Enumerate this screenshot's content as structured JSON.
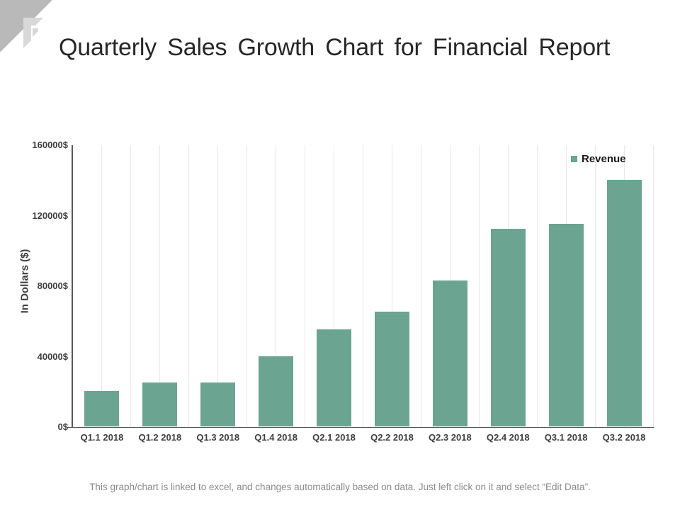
{
  "title": "Quarterly Sales Growth Chart for Financial Report",
  "footer": "This graph/chart is linked to excel, and changes automatically based on data. Just left click on it and select “Edit Data”.",
  "colors": {
    "bar": "#6CA492",
    "axis": "#595959",
    "gridline": "#e8e8e8",
    "title_text": "#272727",
    "label_text": "#3f3f3f",
    "footer_text": "#8a8a8a",
    "logo_dark": "#b9b9b9",
    "logo_light": "#d8d8d8"
  },
  "chart_data": {
    "type": "bar",
    "title": "",
    "categories": [
      "Q1.1 2018",
      "Q1.2 2018",
      "Q1.3 2018",
      "Q1.4 2018",
      "Q2.1 2018",
      "Q2.2 2018",
      "Q2.3 2018",
      "Q2.4 2018",
      "Q3.1 2018",
      "Q3.2 2018"
    ],
    "series": [
      {
        "name": "Revenue",
        "values": [
          20000,
          25000,
          25000,
          40000,
          55000,
          65000,
          83000,
          112000,
          115000,
          140000
        ]
      }
    ],
    "xlabel": "",
    "ylabel": "In Dollars ($)",
    "ylim": [
      0,
      160000
    ],
    "ytick_step": 40000,
    "ytick_labels": [
      "0$",
      "40000$",
      "80000$",
      "120000$",
      "160000$"
    ],
    "grid": "vertical",
    "gridlines_per_category": 2,
    "legend_position": "top-right"
  }
}
